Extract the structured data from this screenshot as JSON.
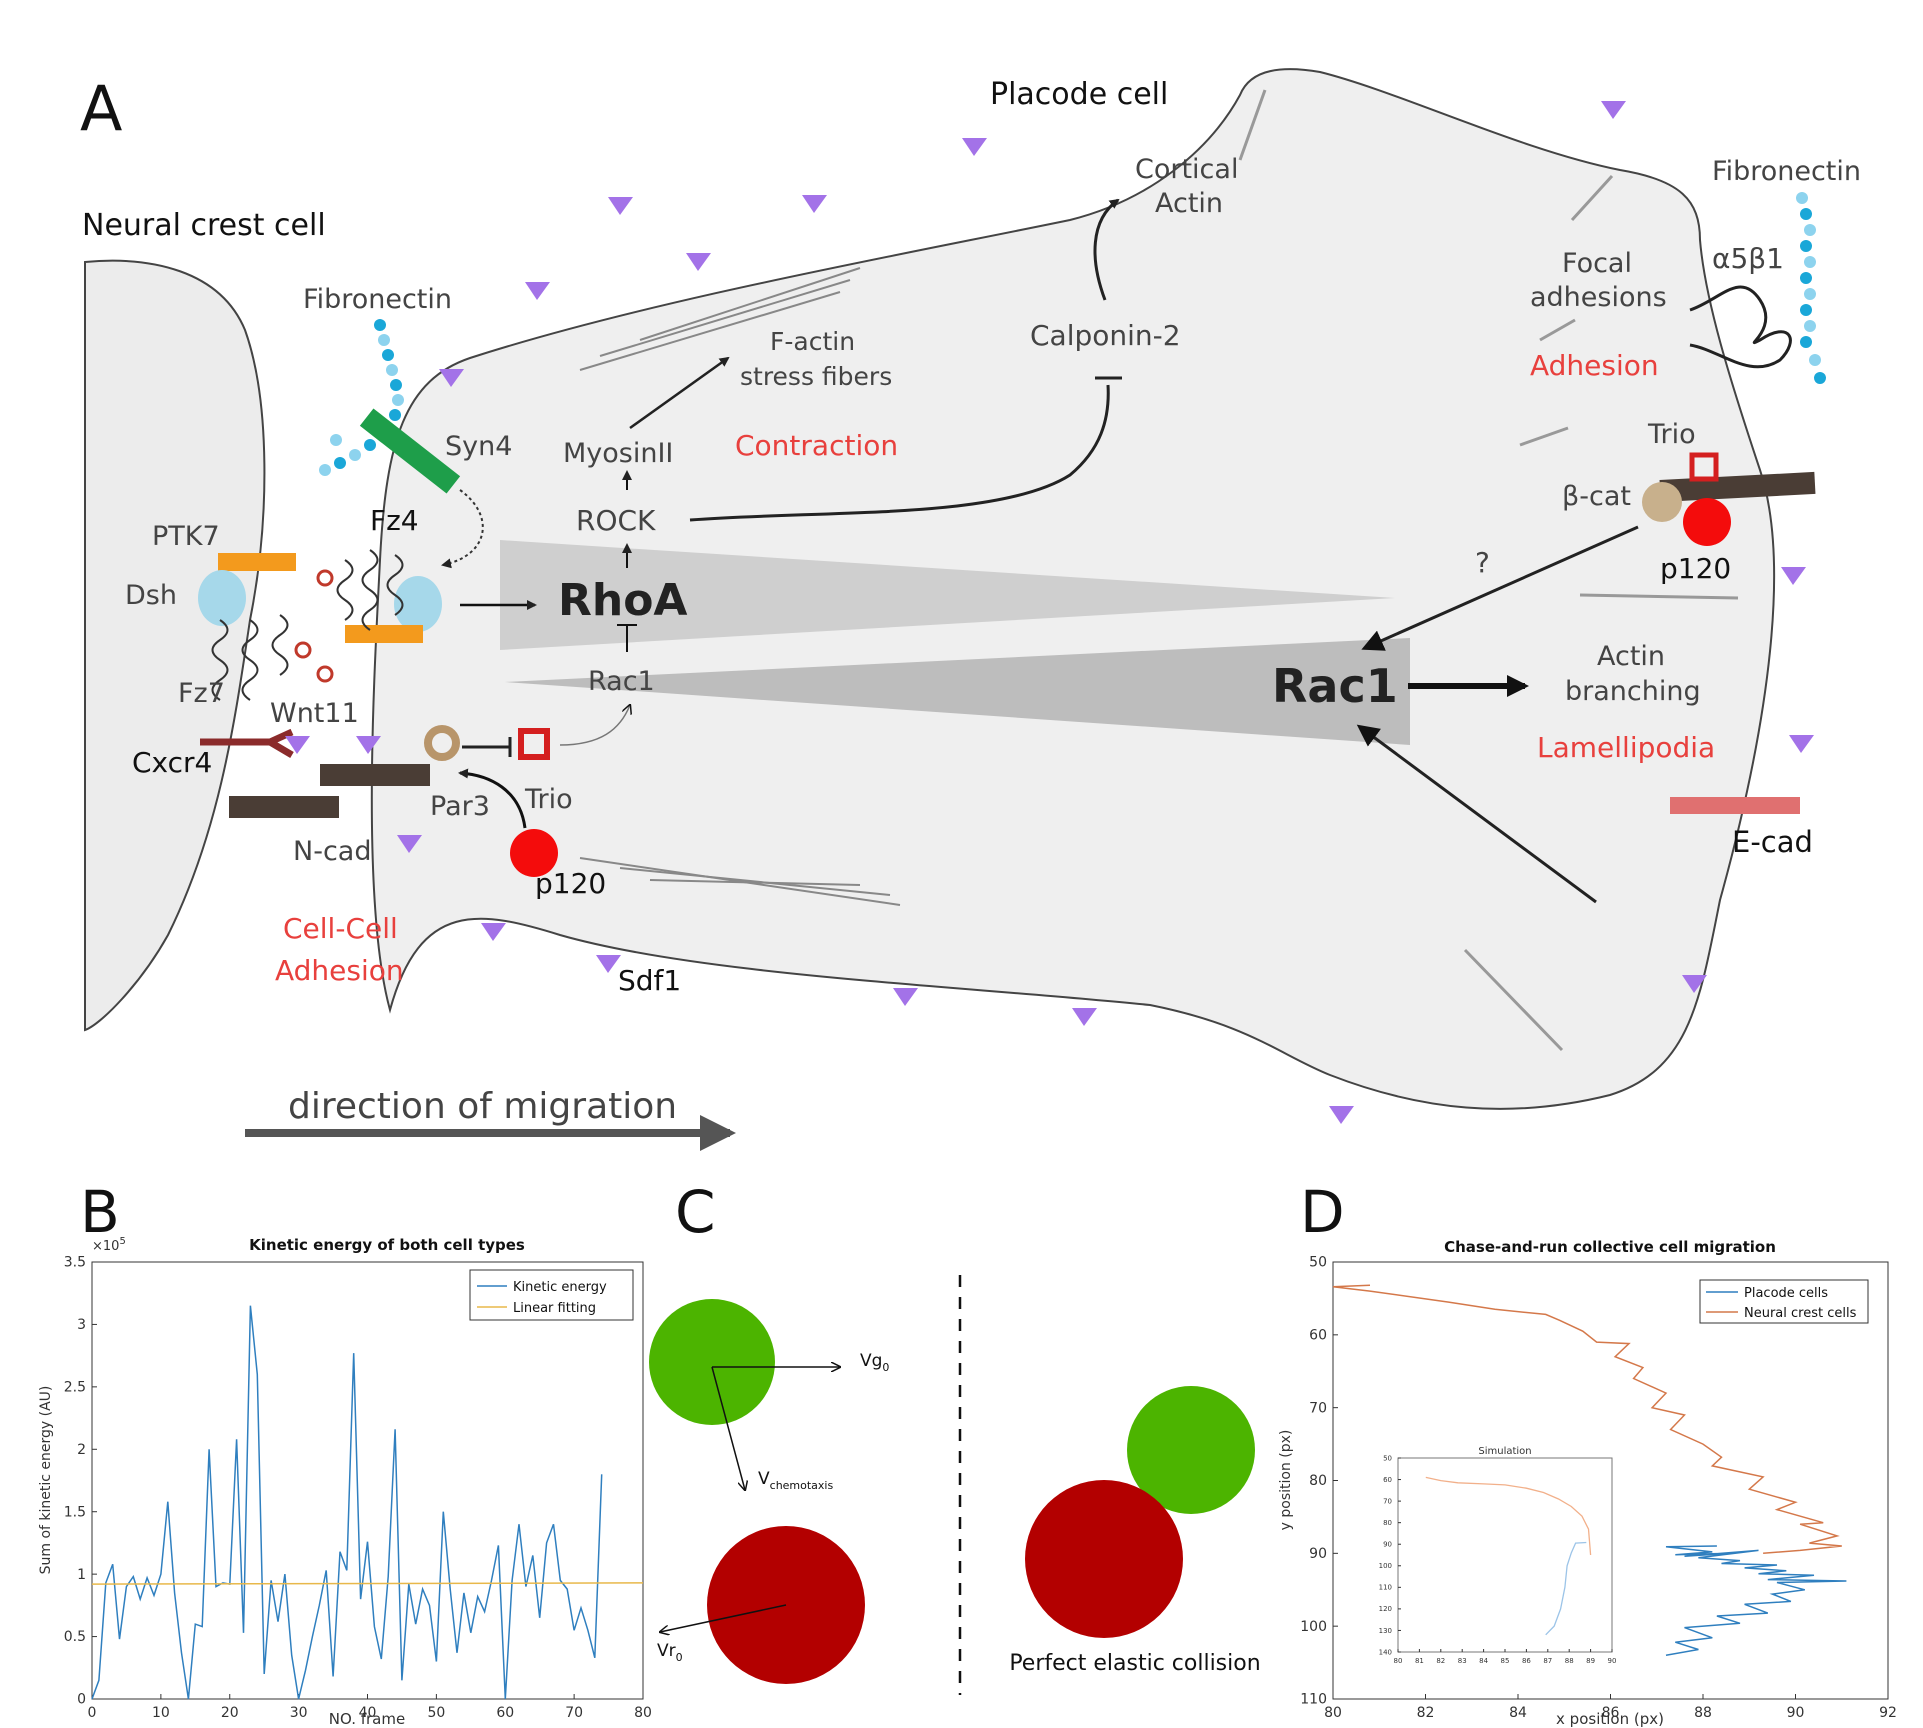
{
  "panel_labels": {
    "a": "A",
    "b": "B",
    "c": "C",
    "d": "D"
  },
  "panel_a": {
    "neural_crest_cell": "Neural crest cell",
    "placode_cell": "Placode cell",
    "fibronectin_left": "Fibronectin",
    "fibronectin_right": "Fibronectin",
    "syn4": "Syn4",
    "fz4": "Fz4",
    "ptk7": "PTK7",
    "dsh": "Dsh",
    "fz7": "Fz7",
    "wnt11": "Wnt11",
    "cxcr4": "Cxcr4",
    "ncad": "N-cad",
    "par3": "Par3",
    "trio_left": "Trio",
    "p120_left": "p120",
    "cell_cell_adhesion_1": "Cell-Cell",
    "cell_cell_adhesion_2": "Adhesion",
    "sdf1": "Sdf1",
    "myosin": "MyosinII",
    "rock": "ROCK",
    "rhoa": "RhoA",
    "rac1_small": "Rac1",
    "rac1_big": "Rac1",
    "factin_1": "F-actin",
    "factin_2": "stress fibers",
    "contraction": "Contraction",
    "calponin": "Calponin-2",
    "cortical_1": "Cortical",
    "cortical_2": "Actin",
    "focal_1": "Focal",
    "focal_2": "adhesions",
    "integrin": "α5β1",
    "adhesion": "Adhesion",
    "trio_right": "Trio",
    "bcat": "β-cat",
    "p120_right": "p120",
    "question": "?",
    "actin_branching_1": "Actin",
    "actin_branching_2": "branching",
    "lamellipodia": "Lamellipodia",
    "ecad": "E-cad",
    "direction": "direction of migration"
  },
  "panel_c": {
    "vg": "Vg",
    "vg_sub": "0",
    "vchem": "V",
    "vchem_sub": "chemotaxis",
    "vr": "Vr",
    "vr_sub": "0",
    "collision": "Perfect elastic collision",
    "green": "#4cb400",
    "red": "#b30000"
  },
  "chart_data": [
    {
      "type": "line",
      "title": "Kinetic energy of both cell types",
      "xlabel": "NO. frame",
      "ylabel": "Sum of kinetic energy (AU)",
      "y_multiplier": "×10",
      "y_multiplier_exp": "5",
      "xlim": [
        0,
        80
      ],
      "ylim": [
        0,
        3.5
      ],
      "x_ticks": [
        "0",
        "10",
        "20",
        "30",
        "40",
        "50",
        "60",
        "70",
        "80"
      ],
      "y_ticks": [
        "0",
        "0.5",
        "1",
        "1.5",
        "2",
        "2.5",
        "3",
        "3.5"
      ],
      "legend_position": "top-right",
      "series": [
        {
          "name": "Kinetic energy",
          "color": "#2f7fbf",
          "x": [
            0,
            1,
            2,
            3,
            4,
            5,
            6,
            7,
            8,
            9,
            10,
            11,
            12,
            13,
            14,
            15,
            16,
            17,
            18,
            19,
            20,
            21,
            22,
            23,
            24,
            25,
            26,
            27,
            28,
            29,
            30,
            31,
            32,
            33,
            34,
            35,
            36,
            37,
            38,
            39,
            40,
            41,
            42,
            43,
            44,
            45,
            46,
            47,
            48,
            49,
            50,
            51,
            52,
            53,
            54,
            55,
            56,
            57,
            58,
            59,
            60,
            61,
            62,
            63,
            64,
            65,
            66,
            67,
            68,
            69,
            70,
            71,
            72,
            73,
            74
          ],
          "y": [
            0,
            0.15,
            0.93,
            1.08,
            0.48,
            0.9,
            0.98,
            0.8,
            0.97,
            0.83,
            1.0,
            1.58,
            0.85,
            0.37,
            0.0,
            0.6,
            0.58,
            2.0,
            0.9,
            0.93,
            0.92,
            2.08,
            0.53,
            3.15,
            2.6,
            0.2,
            0.95,
            0.62,
            1.0,
            0.35,
            0.0,
            0.23,
            0.5,
            0.75,
            1.03,
            0.18,
            1.18,
            1.03,
            2.77,
            0.8,
            1.26,
            0.58,
            0.32,
            0.98,
            2.16,
            0.15,
            0.92,
            0.6,
            0.88,
            0.75,
            0.3,
            1.5,
            0.88,
            0.37,
            0.85,
            0.53,
            0.82,
            0.7,
            0.95,
            1.23,
            0.0,
            0.95,
            1.4,
            0.9,
            1.15,
            0.65,
            1.25,
            1.4,
            0.95,
            0.88,
            0.55,
            0.73,
            0.55,
            0.33,
            1.8
          ]
        },
        {
          "name": "Linear fitting",
          "color": "#e8b84a",
          "x": [
            0,
            80
          ],
          "y": [
            0.92,
            0.93
          ]
        }
      ]
    },
    {
      "type": "line",
      "title": "Chase-and-run collective cell migration",
      "xlabel": "x position (px)",
      "ylabel": "y position (px)",
      "xlim": [
        80,
        92
      ],
      "ylim": [
        50,
        110
      ],
      "y_reversed": true,
      "x_ticks": [
        "80",
        "82",
        "84",
        "86",
        "88",
        "90",
        "92"
      ],
      "y_ticks": [
        "50",
        "60",
        "70",
        "80",
        "90",
        "100",
        "110"
      ],
      "legend_position": "top-right",
      "series": [
        {
          "name": "Placode cells",
          "color": "#2f7fbf",
          "x": [
            88.3,
            87.2,
            88.2,
            87.4,
            88.6,
            87.6,
            89.2,
            87.9,
            88.8,
            88.4,
            89.6,
            88.9,
            89.8,
            89.2,
            90.4,
            89.4,
            91.1,
            89.6,
            90.2,
            89.5,
            89.9,
            88.9,
            89.4,
            88.3,
            88.8,
            87.6,
            88.2,
            87.4,
            87.9,
            87.2
          ],
          "y": [
            89.0,
            89.1,
            89.8,
            90.2,
            90.0,
            90.4,
            89.6,
            90.6,
            91.0,
            91.4,
            91.6,
            92.0,
            92.4,
            92.8,
            93.0,
            93.6,
            93.8,
            94.0,
            95.0,
            95.6,
            96.6,
            97.0,
            98.2,
            98.6,
            99.6,
            100.2,
            101.6,
            102.2,
            103.2,
            104.0
          ]
        },
        {
          "name": "Neural crest cells",
          "color": "#d4784a",
          "x": [
            80.8,
            80.0,
            80.8,
            82.5,
            83.5,
            84.6,
            84.9,
            85.4,
            85.7,
            86.4,
            86.1,
            86.7,
            86.5,
            87.2,
            86.9,
            87.6,
            87.3,
            88.0,
            88.4,
            88.2,
            89.3,
            89.0,
            90.0,
            89.6,
            90.6,
            90.1,
            90.9,
            90.3,
            91.0,
            90.1,
            89.3
          ],
          "y": [
            53.2,
            53.4,
            54.0,
            55.5,
            56.5,
            57.2,
            58.0,
            59.5,
            61.0,
            61.2,
            63.0,
            64.5,
            66.0,
            68.0,
            70.0,
            71.0,
            73.0,
            75.0,
            76.8,
            78.0,
            79.5,
            81.2,
            83.0,
            84.0,
            85.8,
            86.0,
            87.6,
            88.6,
            89.0,
            89.6,
            90.0
          ]
        }
      ]
    },
    {
      "type": "line",
      "title": "Simulation",
      "xlim": [
        80,
        90
      ],
      "ylim": [
        50,
        140
      ],
      "y_reversed": true,
      "x_ticks": [
        "80",
        "81",
        "82",
        "83",
        "84",
        "85",
        "86",
        "87",
        "88",
        "89",
        "90"
      ],
      "y_ticks": [
        "50",
        "60",
        "70",
        "80",
        "90",
        "100",
        "110",
        "120",
        "130",
        "140"
      ],
      "series": [
        {
          "name": "",
          "color": "#f2b08a",
          "x": [
            81.3,
            82.0,
            82.8,
            84.0,
            85.0,
            86.0,
            86.8,
            87.5,
            88.1,
            88.6,
            88.9,
            89.0
          ],
          "y": [
            59.0,
            60.5,
            61.5,
            62.0,
            62.5,
            64.0,
            66.0,
            69.0,
            72.5,
            77.0,
            83.0,
            95.0
          ]
        },
        {
          "name": "",
          "color": "#9cc4e8",
          "x": [
            86.9,
            87.3,
            87.6,
            87.8,
            87.9,
            88.1,
            88.3,
            88.8
          ],
          "y": [
            132.0,
            128.0,
            120.0,
            110.0,
            100.0,
            94.0,
            89.5,
            89.2
          ]
        }
      ]
    }
  ]
}
